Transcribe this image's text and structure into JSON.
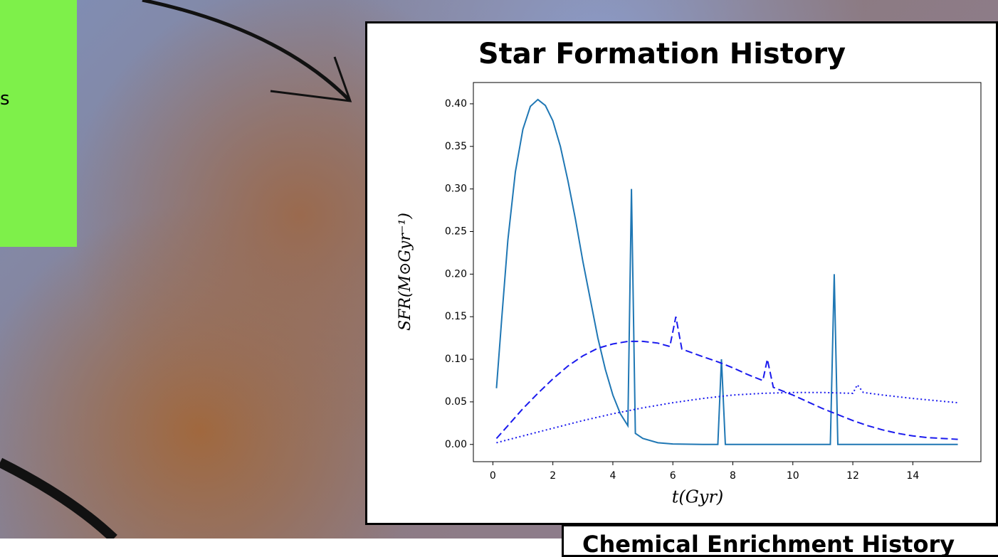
{
  "chart_data": {
    "type": "line",
    "title": "Star Formation History",
    "xlabel": "t(Gyr)",
    "ylabel": "SFR(M⊙Gyr⁻¹)",
    "xlim": [
      -0.65,
      16.27
    ],
    "ylim": [
      -0.02025,
      0.425
    ],
    "xticks": [
      0,
      2,
      4,
      6,
      8,
      10,
      12,
      14
    ],
    "yticks": [
      {
        "value": 0,
        "label": "0.00"
      },
      {
        "value": 0.05,
        "label": "0.05"
      },
      {
        "value": 0.1,
        "label": "0.10"
      },
      {
        "value": 0.15,
        "label": "0.15"
      },
      {
        "value": 0.2,
        "label": "0.20"
      },
      {
        "value": 0.25,
        "label": "0.25"
      },
      {
        "value": 0.3,
        "label": "0.30"
      },
      {
        "value": 0.35,
        "label": "0.35"
      },
      {
        "value": 0.4,
        "label": "0.40"
      }
    ],
    "grid": false,
    "series": [
      {
        "color": "#1f77b4",
        "linestyle": "solid",
        "x": [
          0.12,
          0.3,
          0.5,
          0.75,
          1.0,
          1.25,
          1.5,
          1.75,
          2.0,
          2.25,
          2.5,
          2.75,
          3.0,
          3.25,
          3.5,
          3.75,
          4.0,
          4.25,
          4.5,
          4.62,
          4.75,
          5.0,
          5.5,
          6.0,
          7.0,
          7.5,
          7.62,
          7.75,
          11.25,
          11.38,
          11.5,
          15.5
        ],
        "values": [
          0.066,
          0.15,
          0.24,
          0.32,
          0.37,
          0.397,
          0.405,
          0.398,
          0.38,
          0.35,
          0.31,
          0.265,
          0.215,
          0.17,
          0.125,
          0.088,
          0.058,
          0.036,
          0.022,
          0.3,
          0.013,
          0.007,
          0.002,
          0.0005,
          0,
          0,
          0.1,
          0,
          0,
          0.2,
          0,
          0
        ]
      },
      {
        "color": "#1a1aee",
        "linestyle": "dashed",
        "x": [
          0.12,
          0.5,
          1,
          1.5,
          2,
          2.5,
          3,
          3.5,
          4,
          4.5,
          5,
          5.5,
          5.9,
          6.1,
          6.3,
          7,
          7.5,
          8,
          8.5,
          9,
          9.15,
          9.35,
          10,
          10.5,
          11,
          11.5,
          12,
          12.5,
          13,
          13.5,
          14,
          14.5,
          15.5
        ],
        "values": [
          0.007,
          0.022,
          0.042,
          0.06,
          0.077,
          0.092,
          0.104,
          0.113,
          0.118,
          0.121,
          0.121,
          0.119,
          0.115,
          0.15,
          0.112,
          0.103,
          0.097,
          0.09,
          0.082,
          0.075,
          0.1,
          0.067,
          0.058,
          0.05,
          0.042,
          0.035,
          0.028,
          0.022,
          0.017,
          0.013,
          0.01,
          0.008,
          0.006
        ]
      },
      {
        "color": "#1a1aee",
        "linestyle": "dotted",
        "x": [
          0.12,
          1,
          2,
          3,
          4,
          5,
          6,
          7,
          8,
          9,
          10,
          11,
          12,
          12.15,
          12.35,
          13,
          14,
          15.5
        ],
        "values": [
          0.002,
          0.01,
          0.019,
          0.028,
          0.036,
          0.043,
          0.049,
          0.054,
          0.058,
          0.06,
          0.061,
          0.061,
          0.06,
          0.07,
          0.061,
          0.058,
          0.054,
          0.049
        ]
      }
    ]
  },
  "side_box": {
    "text": "s"
  },
  "lower_panel": {
    "title": "Chemical Enrichment History"
  }
}
